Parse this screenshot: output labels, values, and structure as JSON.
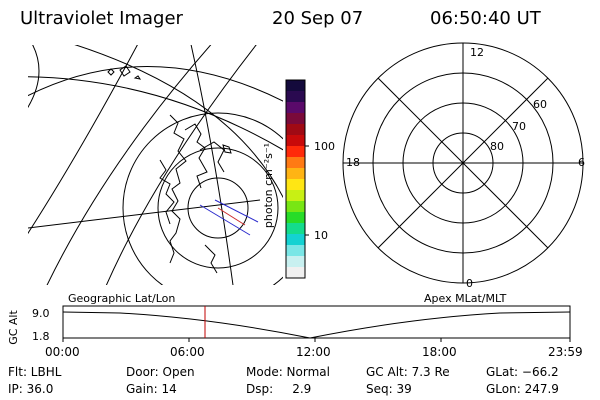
{
  "header": {
    "title": "Ultraviolet Imager",
    "date": "20 Sep 07",
    "time": "06:50:40 UT"
  },
  "colorbar": {
    "unit_label": "photon cm⁻²s⁻¹",
    "tick_100": "100",
    "tick_10": "10",
    "colors": [
      "#140a3c",
      "#2a0a50",
      "#5a0a6a",
      "#7a0a3a",
      "#a00a14",
      "#c80a0a",
      "#ff2a0a",
      "#ff7a14",
      "#ffb414",
      "#ffe614",
      "#c8f014",
      "#78e614",
      "#28dc28",
      "#14dc8c",
      "#14d2d2",
      "#7ae6e6",
      "#c8f0f0",
      "#f0f0f0"
    ]
  },
  "polar_plot": {
    "lat_labels": [
      "60",
      "70",
      "80"
    ],
    "mlt_labels": {
      "top": "12",
      "left": "18",
      "right": "6",
      "bottom": "0"
    }
  },
  "timeline": {
    "axis_title": "GC Alt",
    "y_ticks": [
      "9.0",
      "1.8"
    ],
    "left_label": "Geographic Lat/Lon",
    "right_label": "Apex MLat/MLT",
    "x_ticks": [
      "00:00",
      "06:00",
      "12:00",
      "18:00",
      "23:59"
    ],
    "marker_color": "#c00000"
  },
  "params": {
    "flt": "Flt: LBHL",
    "door": "Door: Open",
    "mode": "Mode: Normal",
    "gc_alt": "GC Alt: 7.3 Re",
    "glat": "GLat: −66.2",
    "ip": "IP: 36.0",
    "gain": "Gain: 14",
    "dsp": "Dsp:     2.9",
    "seq": "Seq: 39",
    "glon": "GLon: 247.9"
  }
}
